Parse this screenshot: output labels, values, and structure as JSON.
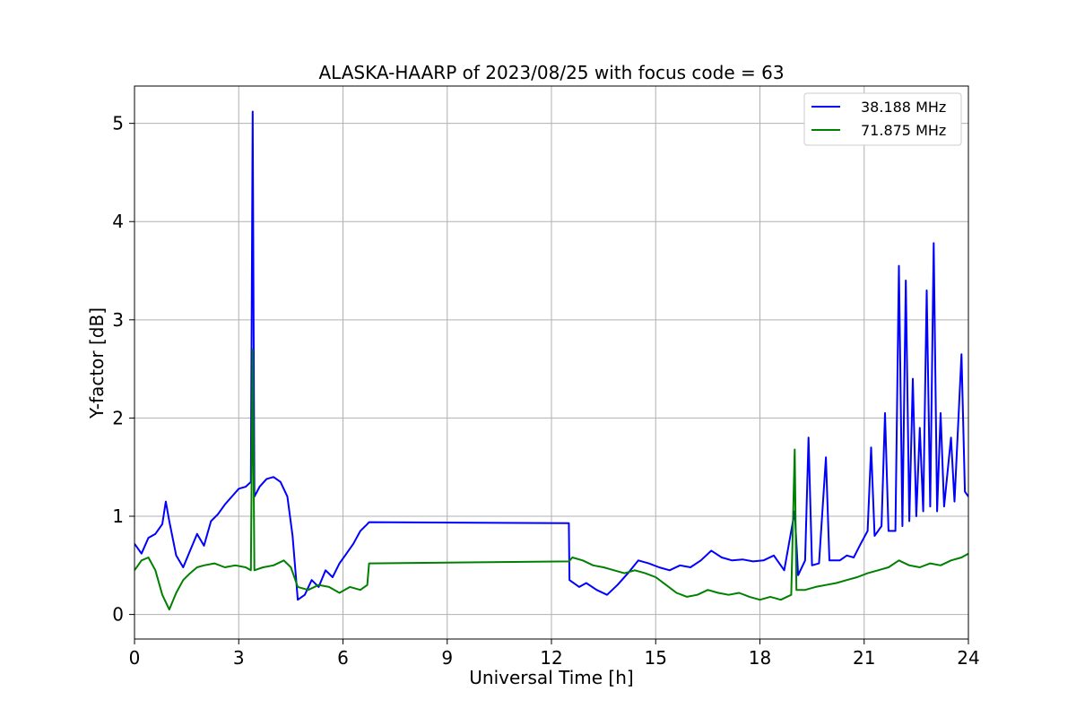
{
  "chart_data": {
    "type": "line",
    "title": "ALASKA-HAARP of 2023/08/25 with focus code = 63",
    "xlabel": "Universal Time [h]",
    "ylabel": "Y-factor [dB]",
    "xlim": [
      0,
      24
    ],
    "ylim": [
      -0.25,
      5.38
    ],
    "xticks": [
      0,
      3,
      6,
      9,
      12,
      15,
      18,
      21,
      24
    ],
    "yticks": [
      0,
      1,
      2,
      3,
      4,
      5
    ],
    "grid": true,
    "legend_position": "top-right",
    "series": [
      {
        "name": "38.188 MHz",
        "color": "#0000ff",
        "points": [
          [
            0.0,
            0.72
          ],
          [
            0.2,
            0.62
          ],
          [
            0.4,
            0.78
          ],
          [
            0.6,
            0.82
          ],
          [
            0.8,
            0.92
          ],
          [
            0.9,
            1.15
          ],
          [
            1.0,
            0.95
          ],
          [
            1.2,
            0.6
          ],
          [
            1.4,
            0.48
          ],
          [
            1.6,
            0.65
          ],
          [
            1.8,
            0.82
          ],
          [
            2.0,
            0.7
          ],
          [
            2.2,
            0.95
          ],
          [
            2.4,
            1.02
          ],
          [
            2.6,
            1.12
          ],
          [
            2.8,
            1.2
          ],
          [
            3.0,
            1.28
          ],
          [
            3.2,
            1.3
          ],
          [
            3.35,
            1.35
          ],
          [
            3.4,
            5.12
          ],
          [
            3.45,
            1.2
          ],
          [
            3.6,
            1.3
          ],
          [
            3.8,
            1.38
          ],
          [
            4.0,
            1.4
          ],
          [
            4.2,
            1.35
          ],
          [
            4.4,
            1.2
          ],
          [
            4.55,
            0.8
          ],
          [
            4.7,
            0.15
          ],
          [
            4.9,
            0.2
          ],
          [
            5.1,
            0.35
          ],
          [
            5.3,
            0.28
          ],
          [
            5.5,
            0.45
          ],
          [
            5.7,
            0.38
          ],
          [
            5.9,
            0.52
          ],
          [
            6.1,
            0.62
          ],
          [
            6.3,
            0.72
          ],
          [
            6.5,
            0.85
          ],
          [
            6.7,
            0.92
          ],
          [
            6.75,
            0.94
          ],
          [
            12.5,
            0.93
          ],
          [
            12.52,
            0.35
          ],
          [
            12.8,
            0.28
          ],
          [
            13.0,
            0.32
          ],
          [
            13.3,
            0.25
          ],
          [
            13.6,
            0.2
          ],
          [
            13.9,
            0.3
          ],
          [
            14.2,
            0.42
          ],
          [
            14.5,
            0.55
          ],
          [
            14.8,
            0.52
          ],
          [
            15.1,
            0.48
          ],
          [
            15.4,
            0.45
          ],
          [
            15.7,
            0.5
          ],
          [
            16.0,
            0.48
          ],
          [
            16.3,
            0.55
          ],
          [
            16.6,
            0.65
          ],
          [
            16.9,
            0.58
          ],
          [
            17.2,
            0.55
          ],
          [
            17.5,
            0.56
          ],
          [
            17.8,
            0.54
          ],
          [
            18.1,
            0.55
          ],
          [
            18.4,
            0.6
          ],
          [
            18.7,
            0.45
          ],
          [
            19.0,
            1.05
          ],
          [
            19.1,
            0.4
          ],
          [
            19.3,
            0.55
          ],
          [
            19.4,
            1.8
          ],
          [
            19.5,
            0.5
          ],
          [
            19.7,
            0.52
          ],
          [
            19.9,
            1.6
          ],
          [
            20.0,
            0.55
          ],
          [
            20.3,
            0.55
          ],
          [
            20.5,
            0.6
          ],
          [
            20.7,
            0.58
          ],
          [
            20.9,
            0.72
          ],
          [
            21.1,
            0.85
          ],
          [
            21.2,
            1.7
          ],
          [
            21.3,
            0.8
          ],
          [
            21.5,
            0.9
          ],
          [
            21.6,
            2.05
          ],
          [
            21.7,
            0.85
          ],
          [
            21.9,
            0.85
          ],
          [
            22.0,
            3.55
          ],
          [
            22.1,
            0.9
          ],
          [
            22.2,
            3.4
          ],
          [
            22.3,
            0.95
          ],
          [
            22.4,
            2.4
          ],
          [
            22.5,
            1.0
          ],
          [
            22.6,
            1.9
          ],
          [
            22.7,
            1.05
          ],
          [
            22.8,
            3.3
          ],
          [
            22.9,
            1.1
          ],
          [
            23.0,
            3.78
          ],
          [
            23.1,
            1.05
          ],
          [
            23.2,
            2.05
          ],
          [
            23.3,
            1.1
          ],
          [
            23.5,
            1.8
          ],
          [
            23.6,
            1.15
          ],
          [
            23.8,
            2.65
          ],
          [
            23.9,
            1.25
          ],
          [
            24.0,
            1.2
          ]
        ]
      },
      {
        "name": "71.875 MHz",
        "color": "#008000",
        "points": [
          [
            0.0,
            0.45
          ],
          [
            0.2,
            0.55
          ],
          [
            0.4,
            0.58
          ],
          [
            0.6,
            0.45
          ],
          [
            0.8,
            0.2
          ],
          [
            1.0,
            0.05
          ],
          [
            1.2,
            0.22
          ],
          [
            1.4,
            0.35
          ],
          [
            1.6,
            0.42
          ],
          [
            1.8,
            0.48
          ],
          [
            2.0,
            0.5
          ],
          [
            2.3,
            0.52
          ],
          [
            2.6,
            0.48
          ],
          [
            2.9,
            0.5
          ],
          [
            3.2,
            0.48
          ],
          [
            3.35,
            0.45
          ],
          [
            3.4,
            2.7
          ],
          [
            3.45,
            0.45
          ],
          [
            3.7,
            0.48
          ],
          [
            4.0,
            0.5
          ],
          [
            4.3,
            0.55
          ],
          [
            4.5,
            0.48
          ],
          [
            4.7,
            0.28
          ],
          [
            5.0,
            0.25
          ],
          [
            5.3,
            0.3
          ],
          [
            5.6,
            0.28
          ],
          [
            5.9,
            0.22
          ],
          [
            6.2,
            0.28
          ],
          [
            6.5,
            0.25
          ],
          [
            6.7,
            0.3
          ],
          [
            6.75,
            0.52
          ],
          [
            12.5,
            0.54
          ],
          [
            12.6,
            0.58
          ],
          [
            12.9,
            0.55
          ],
          [
            13.2,
            0.5
          ],
          [
            13.5,
            0.48
          ],
          [
            13.8,
            0.45
          ],
          [
            14.1,
            0.42
          ],
          [
            14.4,
            0.45
          ],
          [
            14.7,
            0.42
          ],
          [
            15.0,
            0.38
          ],
          [
            15.3,
            0.3
          ],
          [
            15.6,
            0.22
          ],
          [
            15.9,
            0.18
          ],
          [
            16.2,
            0.2
          ],
          [
            16.5,
            0.25
          ],
          [
            16.8,
            0.22
          ],
          [
            17.1,
            0.2
          ],
          [
            17.4,
            0.22
          ],
          [
            17.7,
            0.18
          ],
          [
            18.0,
            0.15
          ],
          [
            18.3,
            0.18
          ],
          [
            18.6,
            0.15
          ],
          [
            18.9,
            0.2
          ],
          [
            19.0,
            1.68
          ],
          [
            19.05,
            0.25
          ],
          [
            19.3,
            0.25
          ],
          [
            19.6,
            0.28
          ],
          [
            19.9,
            0.3
          ],
          [
            20.2,
            0.32
          ],
          [
            20.5,
            0.35
          ],
          [
            20.8,
            0.38
          ],
          [
            21.1,
            0.42
          ],
          [
            21.4,
            0.45
          ],
          [
            21.7,
            0.48
          ],
          [
            22.0,
            0.55
          ],
          [
            22.3,
            0.5
          ],
          [
            22.6,
            0.48
          ],
          [
            22.9,
            0.52
          ],
          [
            23.2,
            0.5
          ],
          [
            23.5,
            0.55
          ],
          [
            23.8,
            0.58
          ],
          [
            24.0,
            0.62
          ]
        ]
      }
    ]
  }
}
